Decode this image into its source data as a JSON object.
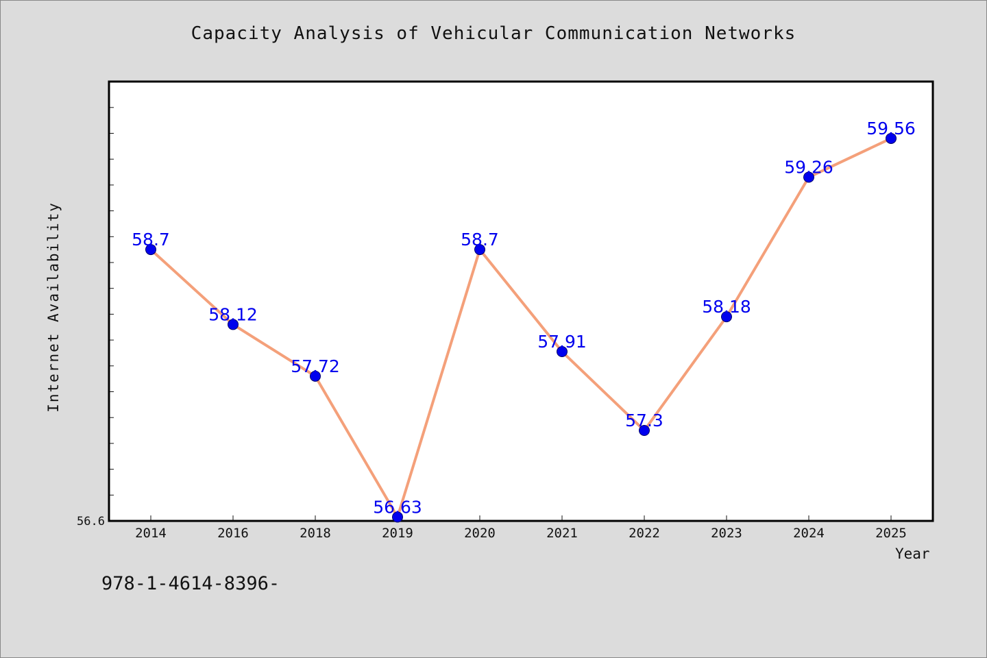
{
  "chart_data": {
    "type": "line",
    "title": "Capacity Analysis of Vehicular Communication Networks",
    "xlabel": "Year",
    "ylabel": "Internet Availability",
    "categories": [
      "2014",
      "2016",
      "2018",
      "2019",
      "2020",
      "2021",
      "2022",
      "2023",
      "2024",
      "2025"
    ],
    "series": [
      {
        "values": [
          58.7,
          58.12,
          57.72,
          56.63,
          58.7,
          57.91,
          57.3,
          58.18,
          59.26,
          59.56
        ],
        "labels": [
          "58.7",
          "58.12",
          "57.72",
          "56.63",
          "58.7",
          "57.91",
          "57.3",
          "58.18",
          "59.26",
          "59.56"
        ],
        "line_color": "#f4a07a",
        "marker_color": "#0000ee"
      }
    ],
    "y_min_label": "56.6",
    "ylim": [
      56.6,
      60.0
    ],
    "grid": false,
    "legend": "none"
  },
  "footnote": "978-1-4614-8396-",
  "colors": {
    "background": "#dcdcdc",
    "plot_background": "#ffffff",
    "line": "#f4a07a",
    "marker": "#0000ee",
    "data_label": "#0000ee"
  }
}
